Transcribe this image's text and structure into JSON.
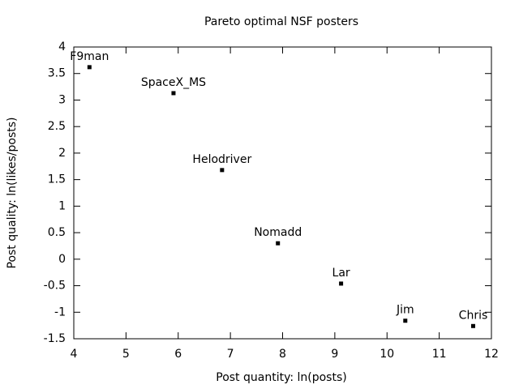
{
  "chart_data": {
    "type": "scatter",
    "title": "Pareto optimal NSF posters",
    "xlabel": "Post quantity:  ln(posts)",
    "ylabel": "Post quality:  ln(likes/posts)",
    "labels": [
      "F9man",
      "SpaceX_MS",
      "Helodriver",
      "Nomadd",
      "Lar",
      "Jim",
      "Chris"
    ],
    "x": [
      4.3,
      5.91,
      6.84,
      7.91,
      9.12,
      10.35,
      11.65
    ],
    "values": [
      3.62,
      3.13,
      1.68,
      0.3,
      -0.46,
      -1.16,
      -1.26
    ],
    "color": "#000000",
    "xlim": [
      4,
      12
    ],
    "xticks": [
      4,
      5,
      6,
      7,
      8,
      9,
      10,
      11,
      12
    ],
    "ylim": [
      -1.5,
      4
    ],
    "yticks": [
      -1.5,
      -1,
      -0.5,
      0,
      0.5,
      1,
      1.5,
      2,
      2.5,
      3,
      3.5,
      4
    ],
    "grid": false
  }
}
